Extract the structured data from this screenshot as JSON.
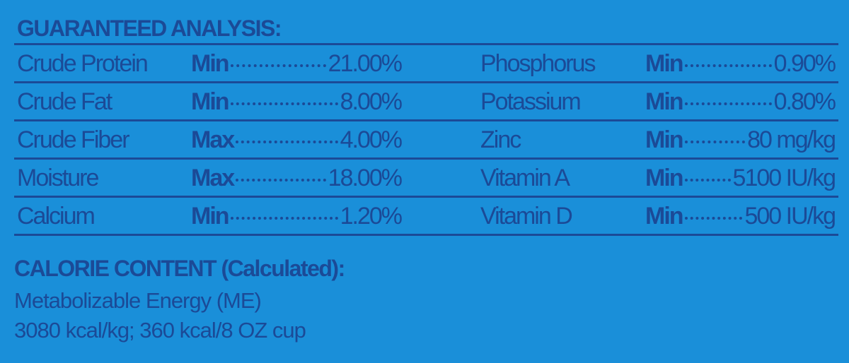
{
  "header": {
    "title": "GUARANTEED ANALYSIS:"
  },
  "table": {
    "rows": [
      [
        {
          "name": "Crude Protein",
          "qualifier": "Min",
          "value": "21.00%"
        },
        {
          "name": "Phosphorus",
          "qualifier": "Min",
          "value": "0.90%"
        }
      ],
      [
        {
          "name": "Crude Fat",
          "qualifier": "Min",
          "value": "8.00%"
        },
        {
          "name": "Potassium",
          "qualifier": "Min",
          "value": "0.80%"
        }
      ],
      [
        {
          "name": "Crude Fiber",
          "qualifier": "Max",
          "value": "4.00%"
        },
        {
          "name": "Zinc",
          "qualifier": "Min",
          "value": "80 mg/kg"
        }
      ],
      [
        {
          "name": "Moisture",
          "qualifier": "Max",
          "value": "18.00%"
        },
        {
          "name": "Vitamin A",
          "qualifier": "Min",
          "value": "5100 IU/kg"
        }
      ],
      [
        {
          "name": "Calcium",
          "qualifier": "Min",
          "value": "1.20%"
        },
        {
          "name": "Vitamin D",
          "qualifier": "Min",
          "value": "500 IU/kg"
        }
      ]
    ]
  },
  "calorie": {
    "title": "CALORIE CONTENT (Calculated):",
    "lines": [
      "Metabolizable Energy (ME)",
      "3080 kcal/kg; 360 kcal/8 OZ cup"
    ]
  }
}
